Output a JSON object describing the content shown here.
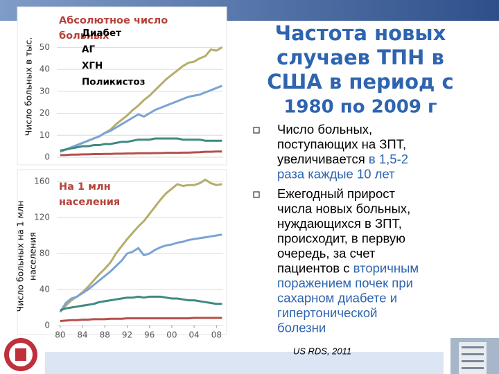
{
  "slide": {
    "title": [
      "Частота новых",
      "случаев ТПН в",
      "США в период с",
      "1980 по 2009 г"
    ],
    "bullets": [
      [
        [
          {
            "text": "Число больных,",
            "color": "#000000"
          }
        ],
        [
          {
            "text": "поступающих на ЗПТ,",
            "color": "#000000"
          }
        ],
        [
          {
            "text": "увеличивается ",
            "color": "#000000"
          },
          {
            "text": "в 1,5-2",
            "color": "#2e64b0"
          }
        ],
        [
          {
            "text": "раза каждые 10 лет",
            "color": "#2e64b0"
          }
        ]
      ],
      [
        [
          {
            "text": "Ежегодный прирост",
            "color": "#000000"
          }
        ],
        [
          {
            "text": "числа новых больных,",
            "color": "#000000"
          }
        ],
        [
          {
            "text": "нуждающихся в ЗПТ,",
            "color": "#000000"
          }
        ],
        [
          {
            "text": "происходит, в первую",
            "color": "#000000"
          }
        ],
        [
          {
            "text": "очередь, за счет",
            "color": "#000000"
          }
        ],
        [
          {
            "text": "пациентов с ",
            "color": "#000000"
          },
          {
            "text": "вторичным",
            "color": "#2e64b0"
          }
        ],
        [
          {
            "text": "поражением почек при",
            "color": "#2e64b0"
          }
        ],
        [
          {
            "text": "сахарном диабете и",
            "color": "#2e64b0"
          }
        ],
        [
          {
            "text": "гипертонической",
            "color": "#2e64b0"
          }
        ],
        [
          {
            "text": "болезни",
            "color": "#2e64b0"
          }
        ]
      ]
    ],
    "source": "US RDS, 2011"
  },
  "chart_data": [
    {
      "type": "line",
      "title": [
        "Абсолютное число",
        "больных"
      ],
      "ylabel": [
        "Число больных в тыс."
      ],
      "x": [
        1980,
        1981,
        1982,
        1983,
        1984,
        1985,
        1986,
        1987,
        1988,
        1989,
        1990,
        1991,
        1992,
        1993,
        1994,
        1995,
        1996,
        1997,
        1998,
        1999,
        2000,
        2001,
        2002,
        2003,
        2004,
        2005,
        2006,
        2007,
        2008,
        2009
      ],
      "xlim": [
        1979.4,
        2009.2
      ],
      "ylim": [
        0,
        52
      ],
      "yticks": [
        0,
        10,
        20,
        30,
        40,
        50
      ],
      "grid": true,
      "series": [
        {
          "name": "Диабет",
          "color": "#b5ad6a",
          "values": [
            2.5,
            3.5,
            4.5,
            5.5,
            6.5,
            7.5,
            8.5,
            9.5,
            11,
            12.5,
            15,
            17,
            19,
            21.5,
            23.5,
            26,
            28,
            30.5,
            33,
            35.5,
            37.5,
            39.5,
            41.5,
            43,
            43.5,
            45,
            46,
            49,
            48.5,
            50
          ]
        },
        {
          "name": "АГ",
          "color": "#7ba3d4",
          "values": [
            2.5,
            3.5,
            4.5,
            5.5,
            6.5,
            7.5,
            8.5,
            9.5,
            11,
            12,
            13.5,
            15,
            16.5,
            18,
            19.5,
            18.5,
            20,
            21.5,
            22.5,
            23.5,
            24.5,
            25.5,
            26.5,
            27.5,
            28,
            28.5,
            29.5,
            30.5,
            31.5,
            32.5
          ]
        },
        {
          "name": "ХГН",
          "color": "#3f8a7e",
          "values": [
            3,
            3.5,
            4,
            4.5,
            5,
            5,
            5.5,
            5.5,
            6,
            6,
            6.5,
            7,
            7,
            7.5,
            8,
            8,
            8,
            8.5,
            8.5,
            8.5,
            8.5,
            8.5,
            8,
            8,
            8,
            8,
            7.5,
            7.5,
            7.5,
            7.5
          ]
        },
        {
          "name": "Поликистоз",
          "color": "#b5504a",
          "values": [
            1,
            1,
            1.2,
            1.2,
            1.3,
            1.3,
            1.4,
            1.4,
            1.5,
            1.5,
            1.6,
            1.6,
            1.7,
            1.7,
            1.8,
            1.8,
            1.8,
            1.9,
            1.9,
            2,
            2,
            2,
            2.1,
            2.1,
            2.2,
            2.3,
            2.5,
            2.5,
            2.6,
            2.6
          ]
        }
      ]
    },
    {
      "type": "line",
      "title": [
        "На 1 млн",
        "населения"
      ],
      "ylabel": [
        "Число больных на 1 млн",
        "населения"
      ],
      "x": [
        1980,
        1981,
        1982,
        1983,
        1984,
        1985,
        1986,
        1987,
        1988,
        1989,
        1990,
        1991,
        1992,
        1993,
        1994,
        1995,
        1996,
        1997,
        1998,
        1999,
        2000,
        2001,
        2002,
        2003,
        2004,
        2005,
        2006,
        2007,
        2008,
        2009
      ],
      "xlim": [
        1979.4,
        2009.2
      ],
      "xticks": [
        {
          "value": 1980,
          "label": "80"
        },
        {
          "value": 1984,
          "label": "84"
        },
        {
          "value": 1988,
          "label": "88"
        },
        {
          "value": 1992,
          "label": "92"
        },
        {
          "value": 1996,
          "label": "96"
        },
        {
          "value": 2000,
          "label": "00"
        },
        {
          "value": 2004,
          "label": "04"
        },
        {
          "value": 2008,
          "label": "08"
        }
      ],
      "ylim": [
        0,
        165
      ],
      "yticks": [
        0,
        40,
        80,
        120,
        160
      ],
      "grid": true,
      "series": [
        {
          "name": "Диабет",
          "color": "#b5ad6a",
          "values": [
            15,
            22,
            28,
            32,
            37,
            43,
            50,
            57,
            63,
            70,
            80,
            88,
            96,
            103,
            110,
            116,
            124,
            132,
            140,
            147,
            152,
            157,
            155,
            156,
            156,
            158,
            162,
            158,
            156,
            157
          ]
        },
        {
          "name": "АГ",
          "color": "#7ba3d4",
          "values": [
            15,
            25,
            30,
            32,
            36,
            40,
            45,
            50,
            55,
            60,
            66,
            72,
            80,
            82,
            86,
            78,
            80,
            84,
            87,
            89,
            90,
            92,
            93,
            95,
            96,
            97,
            98,
            99,
            100,
            101
          ]
        },
        {
          "name": "ХГН",
          "color": "#3f8a7e",
          "values": [
            17,
            19,
            20,
            21,
            22,
            23,
            24,
            26,
            27,
            28,
            29,
            30,
            31,
            31,
            32,
            31,
            32,
            32,
            32,
            31,
            30,
            30,
            29,
            28,
            28,
            27,
            26,
            25,
            24,
            24
          ]
        },
        {
          "name": "Поликистоз",
          "color": "#b5504a",
          "values": [
            5,
            5.5,
            6,
            6,
            6.5,
            6.5,
            7,
            7,
            7,
            7.5,
            7.5,
            7.5,
            8,
            8,
            8,
            8,
            8,
            8,
            8,
            8,
            8,
            8,
            8,
            8,
            8.5,
            8.5,
            8.5,
            8.5,
            8.5,
            8.5
          ]
        }
      ]
    }
  ]
}
